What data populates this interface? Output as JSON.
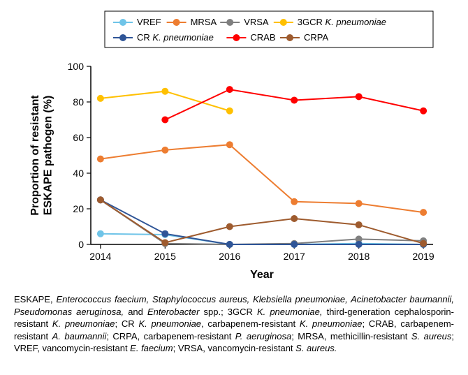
{
  "chart": {
    "type": "line",
    "plot_bg": "#ffffff",
    "xlabel": "Year",
    "ylabel": "Proportion of resistant\nESKAPE pathogen (%)",
    "label_fontsize": 16,
    "label_fontweight": "bold",
    "tick_fontsize": 14,
    "x_categories": [
      "2014",
      "2015",
      "2016",
      "2017",
      "2018",
      "2019"
    ],
    "ylim": [
      0,
      100
    ],
    "ytick_step": 20,
    "axis_color": "#000000",
    "axis_width": 1.5,
    "line_width": 2,
    "marker_radius": 5,
    "legend": {
      "border_color": "#000000",
      "bg": "#ffffff",
      "fontsize": 13,
      "rows": 2
    },
    "series": [
      {
        "name": "VREF",
        "color": "#6fc4e8",
        "points": [
          [
            0,
            6
          ],
          [
            1,
            5.5
          ],
          [
            2,
            0
          ],
          [
            3,
            0
          ],
          [
            4,
            0.5
          ],
          [
            5,
            0
          ]
        ]
      },
      {
        "name": "MRSA",
        "color": "#ed7d31",
        "points": [
          [
            0,
            48
          ],
          [
            1,
            53
          ],
          [
            2,
            56
          ],
          [
            3,
            24
          ],
          [
            4,
            23
          ],
          [
            5,
            18
          ]
        ]
      },
      {
        "name": "VRSA",
        "color": "#7f7f7f",
        "points": [
          [
            0,
            25
          ],
          [
            1,
            0.5
          ],
          [
            2,
            0
          ],
          [
            3,
            0.5
          ],
          [
            4,
            3
          ],
          [
            5,
            2
          ]
        ]
      },
      {
        "name": "3GCR K. pneumoniae",
        "color": "#ffc000",
        "points": [
          [
            0,
            82
          ],
          [
            1,
            86
          ],
          [
            2,
            75
          ]
        ],
        "italic_from": "K. pneumoniae"
      },
      {
        "name": "CR K. pneumoniae",
        "color": "#2f5597",
        "points": [
          [
            0,
            25
          ],
          [
            1,
            6
          ],
          [
            2,
            0
          ],
          [
            3,
            0
          ],
          [
            4,
            0
          ],
          [
            5,
            0
          ]
        ],
        "italic_from": "K. pneumoniae"
      },
      {
        "name": "CRAB",
        "color": "#ff0000",
        "points": [
          [
            1,
            70
          ],
          [
            2,
            87
          ],
          [
            3,
            81
          ],
          [
            4,
            83
          ],
          [
            5,
            75
          ]
        ]
      },
      {
        "name": "CRPA",
        "color": "#9e5b2e",
        "points": [
          [
            0,
            25
          ],
          [
            1,
            1
          ],
          [
            2,
            10
          ],
          [
            3,
            14.5
          ],
          [
            4,
            11
          ],
          [
            5,
            0.5
          ]
        ]
      }
    ]
  },
  "caption": {
    "fontsize": 13,
    "text_parts": [
      {
        "t": "ESKAPE, "
      },
      {
        "t": "Enterococcus faecium, Staphylococcus aureus, Klebsiella pneumoniae, Acinetobacter baumannii, Pseudomonas aeruginosa, ",
        "i": true
      },
      {
        "t": "and "
      },
      {
        "t": "Enterobacter ",
        "i": true
      },
      {
        "t": "spp.; 3GCR "
      },
      {
        "t": "K. pneumoniae, ",
        "i": true
      },
      {
        "t": "third-generation cephalosporin-resistant "
      },
      {
        "t": "K. pneumoniae",
        "i": true
      },
      {
        "t": "; CR "
      },
      {
        "t": "K. pneumoniae",
        "i": true
      },
      {
        "t": ", carbapenem-resistant "
      },
      {
        "t": "K. pneumoniae",
        "i": true
      },
      {
        "t": "; CRAB, carbapenem-resistant "
      },
      {
        "t": "A. baumannii",
        "i": true
      },
      {
        "t": "; CRPA, carbapenem-resistant "
      },
      {
        "t": "P. aeruginosa",
        "i": true
      },
      {
        "t": "; MRSA, methicillin-resistant "
      },
      {
        "t": "S. aureus",
        "i": true
      },
      {
        "t": "; VREF, vancomycin-resistant "
      },
      {
        "t": "E. faecium",
        "i": true
      },
      {
        "t": "; VRSA, vancomycin-resistant "
      },
      {
        "t": "S. aureus.",
        "i": true
      }
    ]
  }
}
